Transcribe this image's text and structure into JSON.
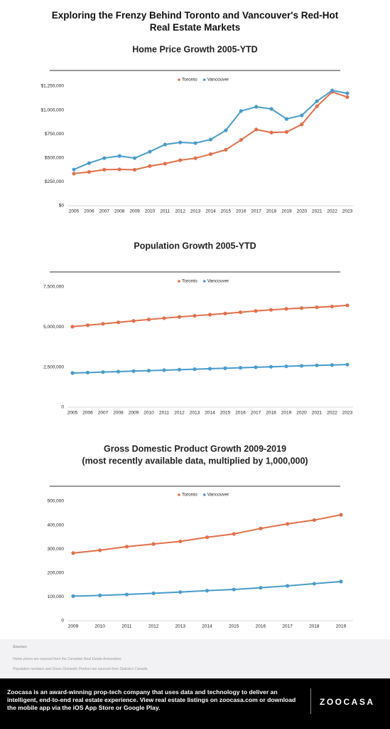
{
  "title": "Exploring the Frenzy Behind Toronto and Vancouver's Red-Hot Real Estate Markets",
  "chart_data": [
    {
      "type": "line",
      "title": "Home Price Growth 2005-YTD",
      "categories": [
        "2005",
        "2006",
        "2007",
        "2008",
        "2009",
        "2010",
        "2011",
        "2012",
        "2013",
        "2014",
        "2015",
        "2016",
        "2017",
        "2018",
        "2019",
        "2020",
        "2021",
        "2022",
        "2023"
      ],
      "series": [
        {
          "name": "Toronto",
          "color": "#e2704c",
          "values": [
            336000,
            353000,
            377000,
            380000,
            376000,
            415000,
            440000,
            476000,
            497000,
            539000,
            585000,
            688000,
            797000,
            765000,
            771000,
            850000,
            1040000,
            1190000,
            1135000
          ]
        },
        {
          "name": "Vancouver",
          "color": "#4a9ccb",
          "values": [
            379000,
            446000,
            498000,
            520000,
            498000,
            565000,
            640000,
            662000,
            655000,
            692000,
            788000,
            990000,
            1034000,
            1012000,
            907000,
            945000,
            1093000,
            1205000,
            1175000
          ]
        }
      ],
      "ylim": [
        0,
        1250000
      ],
      "yticks": [
        {
          "value": 0,
          "label": "$0"
        },
        {
          "value": 250000,
          "label": "$250,000"
        },
        {
          "value": 500000,
          "label": "$500,000"
        },
        {
          "value": 750000,
          "label": "$750,000"
        },
        {
          "value": 1000000,
          "label": "$1,000,000"
        },
        {
          "value": 1250000,
          "label": "$1,250,000"
        }
      ],
      "legend": "top"
    },
    {
      "type": "line",
      "title": "Population Growth 2005-YTD",
      "categories": [
        "2005",
        "2006",
        "2007",
        "2008",
        "2009",
        "2010",
        "2011",
        "2012",
        "2013",
        "2014",
        "2015",
        "2016",
        "2017",
        "2018",
        "2019",
        "2020",
        "2021",
        "2022",
        "2023"
      ],
      "series": [
        {
          "name": "Toronto",
          "color": "#e2704c",
          "values": [
            5020000,
            5110000,
            5200000,
            5290000,
            5380000,
            5470000,
            5550000,
            5630000,
            5700000,
            5770000,
            5840000,
            5920000,
            6000000,
            6070000,
            6130000,
            6180000,
            6230000,
            6280000,
            6350000
          ]
        },
        {
          "name": "Vancouver",
          "color": "#4a9ccb",
          "values": [
            2130000,
            2160000,
            2190000,
            2220000,
            2250000,
            2280000,
            2310000,
            2340000,
            2370000,
            2400000,
            2430000,
            2460000,
            2490000,
            2520000,
            2550000,
            2580000,
            2610000,
            2630000,
            2660000
          ]
        }
      ],
      "ylim": [
        0,
        7500000
      ],
      "yticks": [
        0,
        {
          "value": 2500000,
          "label": "2,500,000"
        },
        {
          "value": 5000000,
          "label": "5,000,000"
        },
        {
          "value": 7500000,
          "label": "7,500,000"
        }
      ],
      "legend": "top"
    },
    {
      "type": "line",
      "title": "Gross Domestic Product Growth 2009-2019",
      "subtitle": "(most recently available data, multiplied by 1,000,000)",
      "categories": [
        "2009",
        "2010",
        "2011",
        "2012",
        "2013",
        "2014",
        "2015",
        "2016",
        "2017",
        "2018",
        "2019"
      ],
      "series": [
        {
          "name": "Toronto",
          "color": "#e2704c",
          "values": [
            283000,
            295000,
            310000,
            321000,
            332000,
            349000,
            363000,
            386000,
            405000,
            421000,
            443000
          ]
        },
        {
          "name": "Vancouver",
          "color": "#4a9ccb",
          "values": [
            103000,
            106000,
            110000,
            115000,
            120000,
            126000,
            131000,
            138000,
            146000,
            155000,
            164000
          ]
        }
      ],
      "ylim": [
        0,
        500000
      ],
      "yticks": [
        0,
        {
          "value": 100000,
          "label": "100,000"
        },
        {
          "value": 200000,
          "label": "200,000"
        },
        {
          "value": 300000,
          "label": "300,000"
        },
        {
          "value": 400000,
          "label": "400,000"
        },
        {
          "value": 500000,
          "label": "500,000"
        }
      ],
      "legend": "top"
    }
  ],
  "sources": {
    "heading": "Sources",
    "lines": [
      "Home prices are sourced from the Canadian Real Estate Association.",
      "Population numbers and Gross Domestic Product are sourced from Statistics Canada."
    ]
  },
  "footer": {
    "text": "Zoocasa is an award-winning prop-tech company that uses data and technology to deliver an intelligent, end-to-end real estate experience. View real estate listings on zoocasa.com or download the mobile app via the iOS App Store or Google Play.",
    "logo": "ZOOCASA"
  }
}
